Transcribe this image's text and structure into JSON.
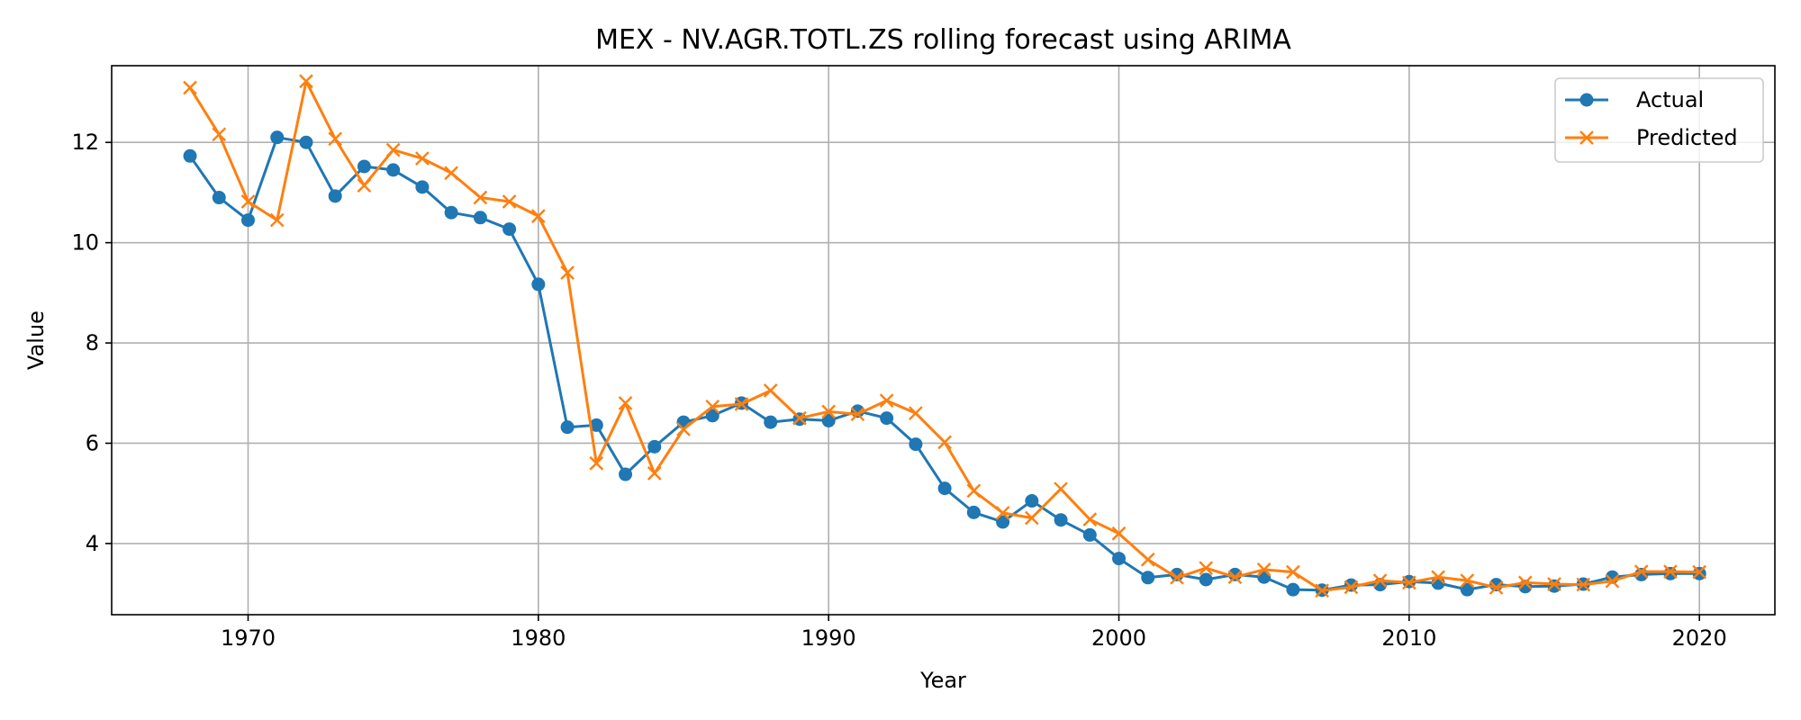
{
  "chart_data": {
    "type": "line",
    "title": "MEX - NV.AGR.TOTL.ZS rolling forecast using ARIMA",
    "xlabel": "Year",
    "ylabel": "Value",
    "xlim": [
      1965.3,
      2022.6
    ],
    "ylim": [
      2.58,
      13.53
    ],
    "xticks": [
      1970,
      1980,
      1990,
      2000,
      2010,
      2020
    ],
    "yticks": [
      4,
      6,
      8,
      10,
      12
    ],
    "grid": true,
    "legend_position": "top-right",
    "x": [
      1968,
      1969,
      1970,
      1971,
      1972,
      1973,
      1974,
      1975,
      1976,
      1977,
      1978,
      1979,
      1980,
      1981,
      1982,
      1983,
      1984,
      1985,
      1986,
      1987,
      1988,
      1989,
      1990,
      1991,
      1992,
      1993,
      1994,
      1995,
      1996,
      1997,
      1998,
      1999,
      2000,
      2001,
      2002,
      2003,
      2004,
      2005,
      2006,
      2007,
      2008,
      2009,
      2010,
      2011,
      2012,
      2013,
      2014,
      2015,
      2016,
      2017,
      2018,
      2019,
      2020
    ],
    "series": [
      {
        "name": "Actual",
        "color": "#1f77b4",
        "marker": "circle",
        "values": [
          11.73,
          10.9,
          10.45,
          12.1,
          12.0,
          10.93,
          11.52,
          11.45,
          11.11,
          10.6,
          10.5,
          10.27,
          9.17,
          6.32,
          6.36,
          5.38,
          5.93,
          6.42,
          6.55,
          6.8,
          6.42,
          6.48,
          6.45,
          6.64,
          6.5,
          5.98,
          5.1,
          4.62,
          4.43,
          4.85,
          4.47,
          4.17,
          3.7,
          3.32,
          3.38,
          3.28,
          3.38,
          3.33,
          3.08,
          3.07,
          3.17,
          3.18,
          3.24,
          3.21,
          3.08,
          3.18,
          3.14,
          3.15,
          3.19,
          3.33,
          3.38,
          3.4,
          3.4
        ]
      },
      {
        "name": "Predicted",
        "color": "#ff7f0e",
        "marker": "x",
        "values": [
          13.09,
          12.16,
          10.82,
          10.45,
          13.22,
          12.07,
          11.14,
          11.85,
          11.68,
          11.39,
          10.9,
          10.82,
          10.53,
          9.4,
          5.6,
          6.8,
          5.4,
          6.28,
          6.73,
          6.78,
          7.05,
          6.5,
          6.63,
          6.58,
          6.85,
          6.6,
          6.02,
          5.05,
          4.61,
          4.51,
          5.09,
          4.48,
          4.2,
          3.68,
          3.32,
          3.51,
          3.33,
          3.48,
          3.43,
          3.06,
          3.13,
          3.26,
          3.22,
          3.33,
          3.26,
          3.12,
          3.22,
          3.19,
          3.18,
          3.25,
          3.44,
          3.44,
          3.43
        ]
      }
    ]
  }
}
